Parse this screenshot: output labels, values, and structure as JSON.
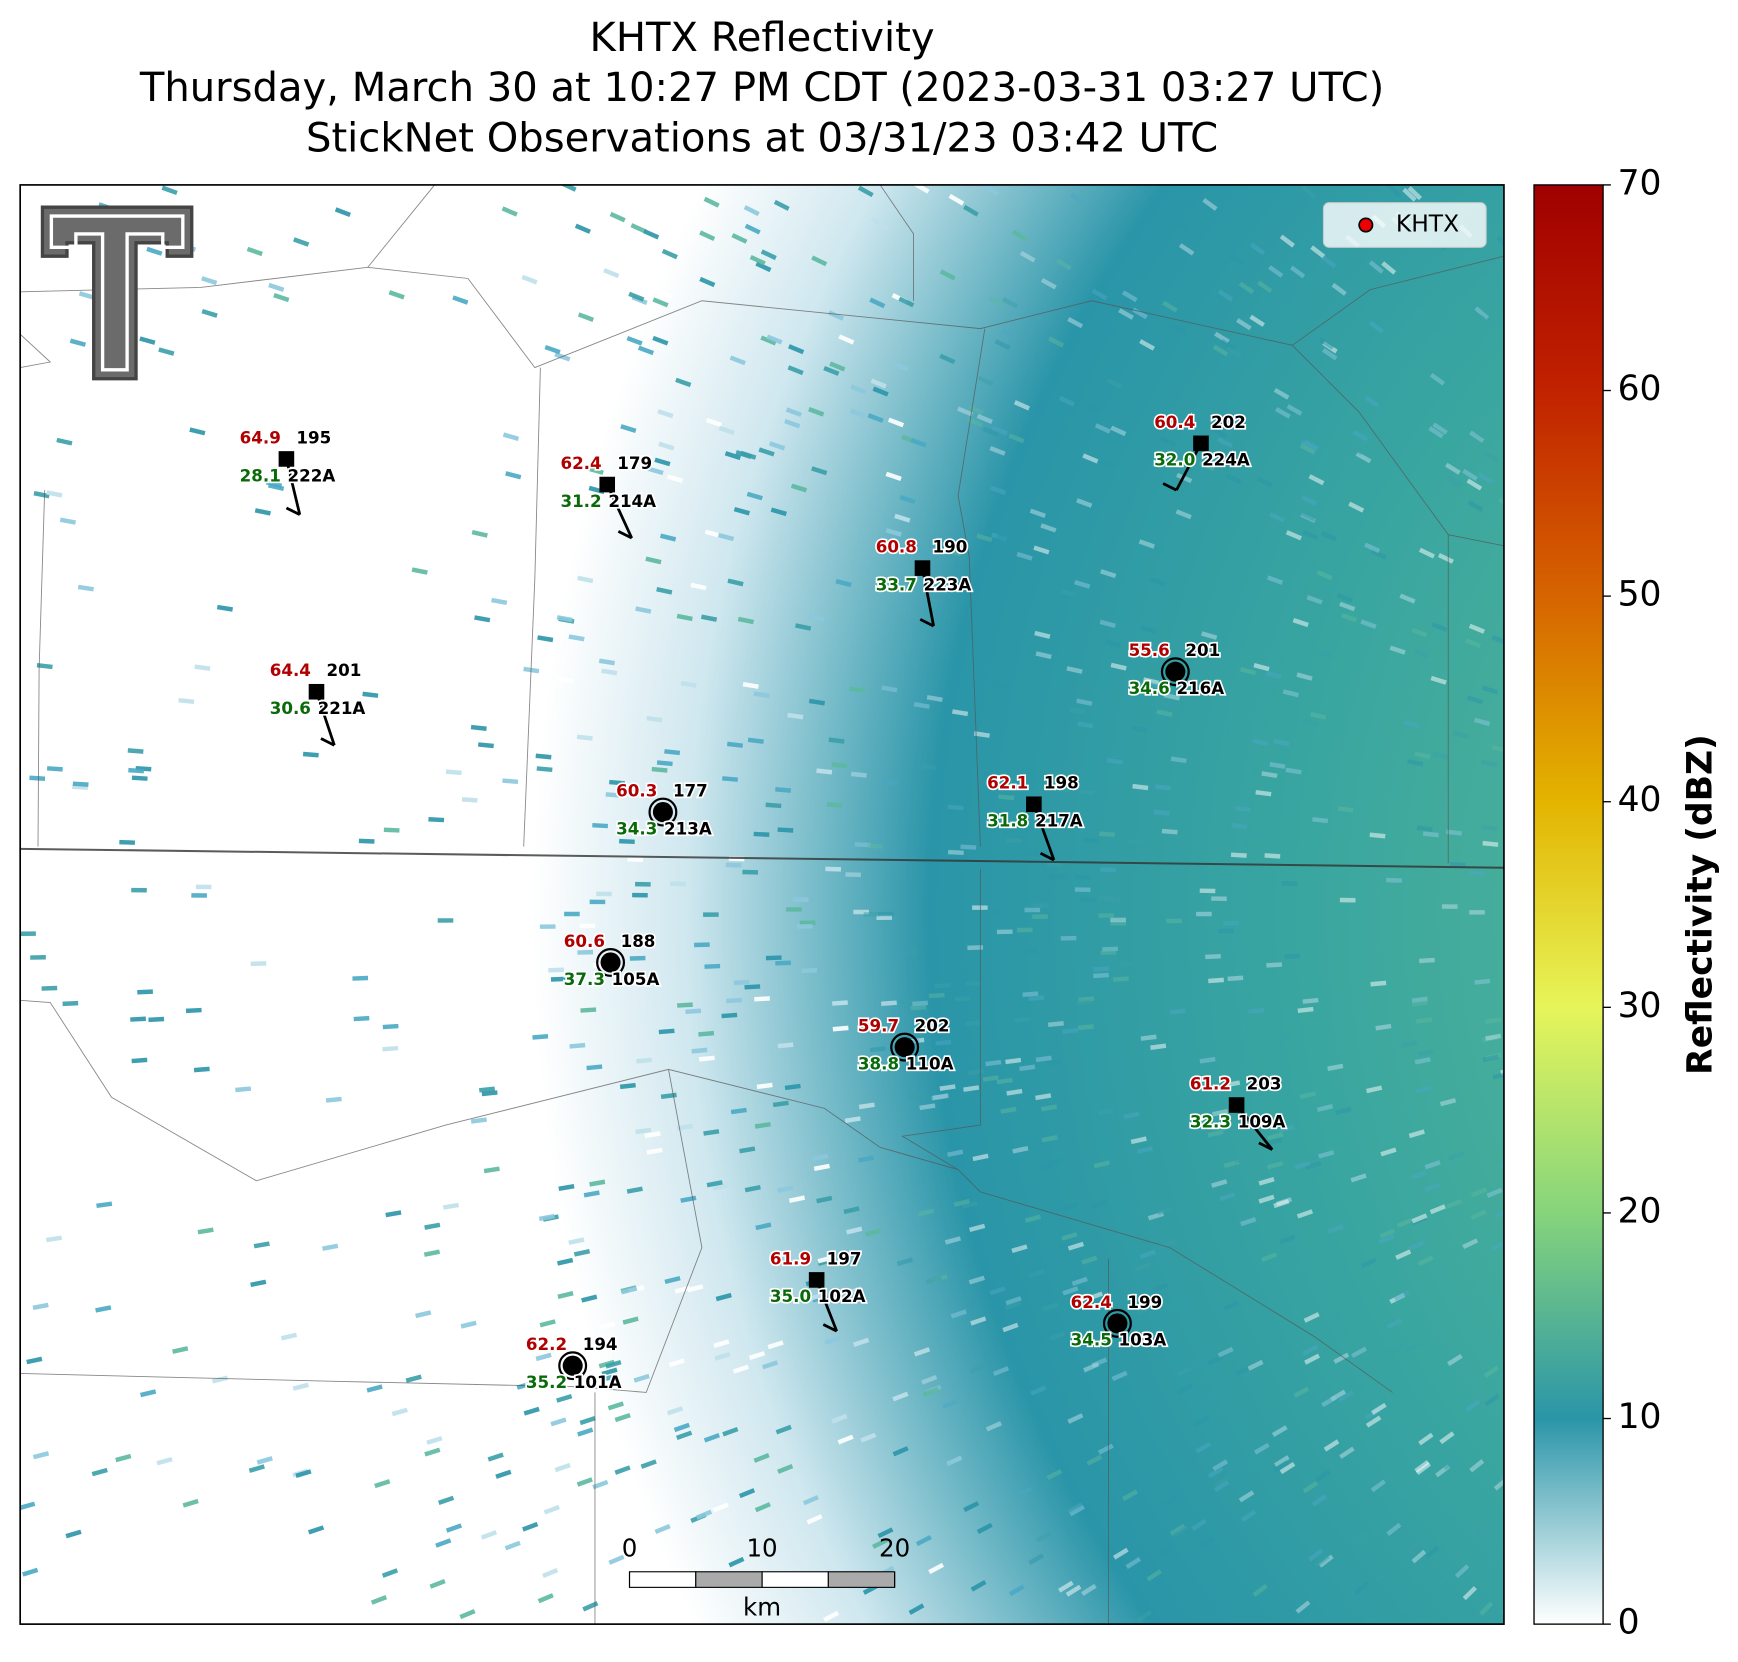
{
  "title": [
    "KHTX Reflectivity",
    "Thursday, March 30 at 10:27 PM CDT (2023-03-31 03:27 UTC)",
    "StickNet Observations at 03/31/23 03:42 UTC"
  ],
  "legend": [
    "KHTX"
  ],
  "colorbar": {
    "label": "Reflectivity (dBZ)",
    "lim": [
      0,
      70
    ],
    "ticks": [
      0,
      10,
      20,
      30,
      40,
      50,
      60,
      70
    ],
    "colors": [
      "#ffffff",
      "#2a95a8",
      "#86d47c",
      "#e6f55a",
      "#e3b400",
      "#d66400",
      "#c12200",
      "#a00000"
    ]
  },
  "scale_bar": {
    "ticks": [
      0,
      10,
      20
    ],
    "unit": "km"
  },
  "stations": [
    {
      "id": "222A",
      "temp": "64.9",
      "dewpoint": "28.1",
      "value": "195",
      "marker": "square"
    },
    {
      "id": "214A",
      "temp": "62.4",
      "dewpoint": "31.2",
      "value": "179",
      "marker": "square"
    },
    {
      "id": "224A",
      "temp": "60.4",
      "dewpoint": "32.0",
      "value": "202",
      "marker": "square"
    },
    {
      "id": "223A",
      "temp": "60.8",
      "dewpoint": "33.7",
      "value": "190",
      "marker": "square"
    },
    {
      "id": "216A",
      "temp": "55.6",
      "dewpoint": "34.6",
      "value": "201",
      "marker": "circle"
    },
    {
      "id": "221A",
      "temp": "64.4",
      "dewpoint": "30.6",
      "value": "201",
      "marker": "square"
    },
    {
      "id": "213A",
      "temp": "60.3",
      "dewpoint": "34.3",
      "value": "177",
      "marker": "circle"
    },
    {
      "id": "217A",
      "temp": "62.1",
      "dewpoint": "31.8",
      "value": "198",
      "marker": "square"
    },
    {
      "id": "105A",
      "temp": "60.6",
      "dewpoint": "37.3",
      "value": "188",
      "marker": "circle"
    },
    {
      "id": "110A",
      "temp": "59.7",
      "dewpoint": "38.8",
      "value": "202",
      "marker": "circle"
    },
    {
      "id": "109A",
      "temp": "61.2",
      "dewpoint": "32.3",
      "value": "203",
      "marker": "square"
    },
    {
      "id": "102A",
      "temp": "61.9",
      "dewpoint": "35.0",
      "value": "197",
      "marker": "square"
    },
    {
      "id": "103A",
      "temp": "62.4",
      "dewpoint": "34.5",
      "value": "199",
      "marker": "circle"
    },
    {
      "id": "101A",
      "temp": "62.2",
      "dewpoint": "35.2",
      "value": "194",
      "marker": "circle"
    }
  ]
}
